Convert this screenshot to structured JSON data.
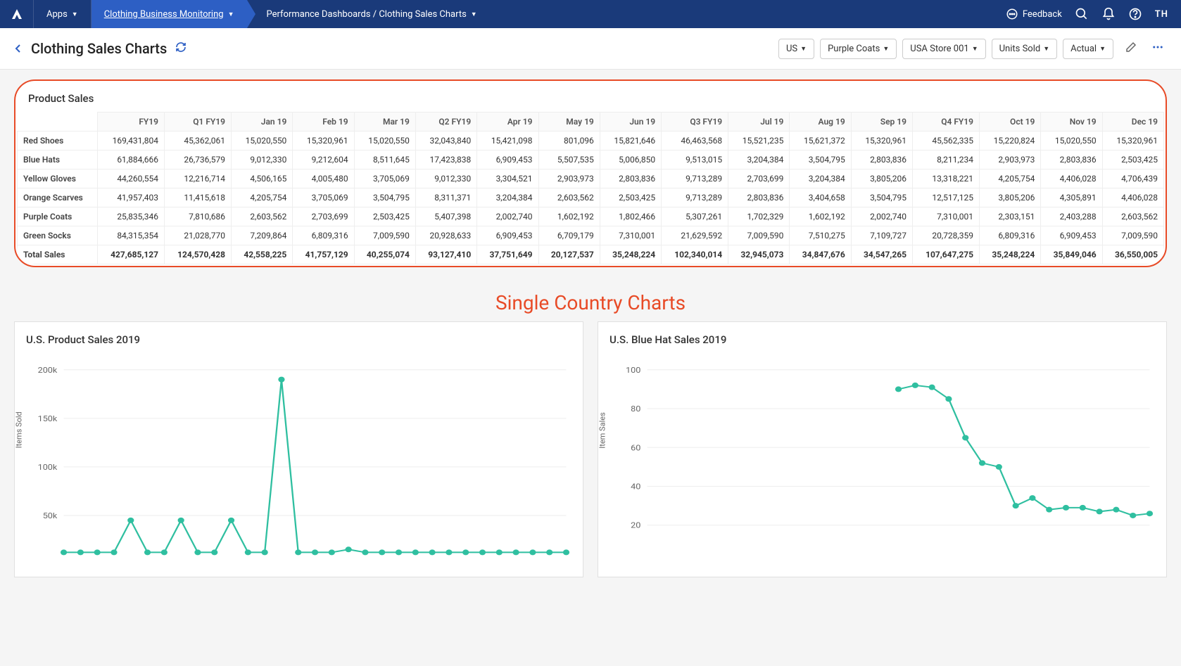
{
  "colors": {
    "nav_bg": "#1a3a7a",
    "nav_active": "#2d5fc4",
    "accent_orange": "#e84b27",
    "chart_line": "#2fbfa0",
    "grid": "#eeeeee",
    "card_bg": "#ffffff",
    "page_bg": "#f5f5f5"
  },
  "topnav": {
    "apps_label": "Apps",
    "crumb1": "Clothing Business Monitoring",
    "crumb2": "Performance Dashboards / Clothing Sales Charts",
    "feedback": "Feedback",
    "avatar": "TH"
  },
  "pageheader": {
    "title": "Clothing Sales Charts",
    "filters": [
      {
        "label": "US"
      },
      {
        "label": "Purple Coats"
      },
      {
        "label": "USA Store 001"
      },
      {
        "label": "Units Sold"
      },
      {
        "label": "Actual"
      }
    ]
  },
  "product_sales": {
    "title": "Product Sales",
    "columns": [
      "FY19",
      "Q1 FY19",
      "Jan 19",
      "Feb 19",
      "Mar 19",
      "Q2 FY19",
      "Apr 19",
      "May 19",
      "Jun 19",
      "Q3 FY19",
      "Jul 19",
      "Aug 19",
      "Sep 19",
      "Q4 FY19",
      "Oct 19",
      "Nov 19",
      "Dec 19"
    ],
    "rows": [
      {
        "label": "Red Shoes",
        "v": [
          "169,431,804",
          "45,362,061",
          "15,020,550",
          "15,320,961",
          "15,020,550",
          "32,043,840",
          "15,421,098",
          "801,096",
          "15,821,646",
          "46,463,568",
          "15,521,235",
          "15,621,372",
          "15,320,961",
          "45,562,335",
          "15,220,824",
          "15,020,550",
          "15,320,961"
        ]
      },
      {
        "label": "Blue Hats",
        "v": [
          "61,884,666",
          "26,736,579",
          "9,012,330",
          "9,212,604",
          "8,511,645",
          "17,423,838",
          "6,909,453",
          "5,507,535",
          "5,006,850",
          "9,513,015",
          "3,204,384",
          "3,504,795",
          "2,803,836",
          "8,211,234",
          "2,903,973",
          "2,803,836",
          "2,503,425"
        ]
      },
      {
        "label": "Yellow Gloves",
        "v": [
          "44,260,554",
          "12,216,714",
          "4,506,165",
          "4,005,480",
          "3,705,069",
          "9,012,330",
          "3,304,521",
          "2,903,973",
          "2,803,836",
          "9,713,289",
          "2,703,699",
          "3,204,384",
          "3,805,206",
          "13,318,221",
          "4,205,754",
          "4,406,028",
          "4,706,439"
        ]
      },
      {
        "label": "Orange Scarves",
        "v": [
          "41,957,403",
          "11,415,618",
          "4,205,754",
          "3,705,069",
          "3,504,795",
          "8,311,371",
          "3,204,384",
          "2,603,562",
          "2,503,425",
          "9,713,289",
          "2,803,836",
          "3,404,658",
          "3,504,795",
          "12,517,125",
          "3,805,206",
          "4,305,891",
          "4,406,028"
        ]
      },
      {
        "label": "Purple Coats",
        "v": [
          "25,835,346",
          "7,810,686",
          "2,603,562",
          "2,703,699",
          "2,503,425",
          "5,407,398",
          "2,002,740",
          "1,602,192",
          "1,802,466",
          "5,307,261",
          "1,702,329",
          "1,602,192",
          "2,002,740",
          "7,310,001",
          "2,303,151",
          "2,403,288",
          "2,603,562"
        ]
      },
      {
        "label": "Green Socks",
        "v": [
          "84,315,354",
          "21,028,770",
          "7,209,864",
          "6,809,316",
          "7,009,590",
          "20,928,633",
          "6,909,453",
          "6,709,179",
          "7,310,001",
          "21,629,592",
          "7,009,590",
          "7,510,275",
          "7,109,727",
          "20,728,359",
          "6,809,316",
          "6,909,453",
          "7,009,590"
        ]
      }
    ],
    "total": {
      "label": "Total Sales",
      "v": [
        "427,685,127",
        "124,570,428",
        "42,558,225",
        "41,757,129",
        "40,255,074",
        "93,127,410",
        "37,751,649",
        "20,127,537",
        "35,248,224",
        "102,340,014",
        "32,945,073",
        "34,847,676",
        "34,547,265",
        "107,647,275",
        "35,248,224",
        "35,849,046",
        "36,550,005"
      ]
    }
  },
  "section_heading": "Single Country Charts",
  "chart1": {
    "title": "U.S. Product Sales 2019",
    "ylabel": "Items Sold",
    "type": "line",
    "line_color": "#2fbfa0",
    "marker": "circle",
    "marker_size": 4,
    "grid_color": "#eeeeee",
    "yticks": [
      50000,
      100000,
      150000,
      200000
    ],
    "ytick_labels": [
      "50k",
      "100k",
      "150k",
      "200k"
    ],
    "ylim": [
      0,
      210000
    ],
    "values": [
      12000,
      12000,
      12000,
      12000,
      45000,
      12000,
      12000,
      45000,
      12000,
      12000,
      45000,
      12000,
      12000,
      190000,
      12000,
      12000,
      12000,
      15000,
      12000,
      12000,
      12000,
      12000,
      12000,
      12000,
      12000,
      12000,
      12000,
      12000,
      12000,
      12000,
      12000
    ]
  },
  "chart2": {
    "title": "U.S. Blue Hat Sales 2019",
    "ylabel": "Item Sales",
    "type": "line",
    "line_color": "#2fbfa0",
    "marker": "circle",
    "marker_size": 4,
    "grid_color": "#eeeeee",
    "yticks": [
      20,
      40,
      60,
      80,
      100
    ],
    "ytick_labels": [
      "20",
      "40",
      "60",
      "80",
      "100"
    ],
    "ylim": [
      0,
      105
    ],
    "values": [
      null,
      null,
      null,
      null,
      null,
      null,
      null,
      null,
      null,
      null,
      null,
      null,
      null,
      null,
      null,
      90,
      92,
      91,
      85,
      65,
      52,
      50,
      30,
      34,
      28,
      29,
      29,
      27,
      28,
      25,
      26
    ]
  }
}
